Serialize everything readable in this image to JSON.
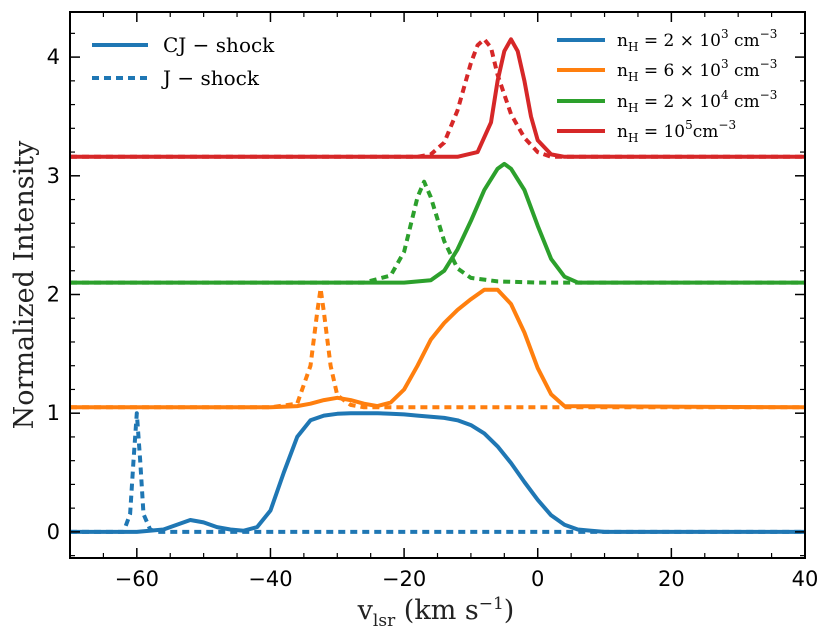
{
  "chart_data": {
    "type": "line",
    "title": "",
    "xlabel_main": "v",
    "xlabel_sub": "lsr",
    "xlabel_units": "(km s",
    "xlabel_units_sup": "−1",
    "xlabel_units_end": ")",
    "ylabel": "Normalized Intensity",
    "xlim": [
      -70,
      40
    ],
    "ylim": [
      -0.22,
      4.38
    ],
    "xticks": [
      -60,
      -40,
      -20,
      0,
      20,
      40
    ],
    "xtick_labels": [
      "−60",
      "−40",
      "−20",
      "0",
      "20",
      "40"
    ],
    "yticks": [
      0,
      1,
      2,
      3,
      4
    ],
    "ytick_labels": [
      "0",
      "1",
      "2",
      "3",
      "4"
    ],
    "style_legend": [
      {
        "label": "CJ − shock",
        "linestyle": "solid"
      },
      {
        "label": "J − shock",
        "linestyle": "dashed"
      }
    ],
    "density_legend": [
      {
        "label": "n",
        "sub": "H",
        "rest": " = 2 × 10",
        "sup": "3",
        "unit": " cm",
        "unitsup": "−3",
        "color": "#1f77b4"
      },
      {
        "label": "n",
        "sub": "H",
        "rest": " = 6 × 10",
        "sup": "3",
        "unit": " cm",
        "unitsup": "−3",
        "color": "#ff7f0e"
      },
      {
        "label": "n",
        "sub": "H",
        "rest": " = 2 × 10",
        "sup": "4",
        "unit": " cm",
        "unitsup": "−3",
        "color": "#2ca02c"
      },
      {
        "label": "n",
        "sub": "H",
        "rest": " = 10",
        "sup": "5",
        "unit": "cm",
        "unitsup": "−3",
        "color": "#d62728"
      }
    ],
    "series": [
      {
        "name": "CJ-shock nH=2e3",
        "color": "#1f77b4",
        "linestyle": "solid",
        "x": [
          -70,
          -60,
          -56,
          -54,
          -52,
          -50,
          -48,
          -46,
          -44,
          -42,
          -40,
          -38,
          -36,
          -34,
          -32,
          -30,
          -28,
          -26,
          -24,
          -22,
          -20,
          -18,
          -16,
          -14,
          -12,
          -10,
          -8,
          -6,
          -4,
          -2,
          0,
          2,
          4,
          6,
          8,
          10,
          12,
          40
        ],
        "y": [
          0,
          0,
          0.02,
          0.06,
          0.1,
          0.08,
          0.04,
          0.02,
          0.01,
          0.04,
          0.18,
          0.5,
          0.8,
          0.94,
          0.98,
          0.995,
          1.0,
          1.0,
          1.0,
          0.995,
          0.99,
          0.98,
          0.97,
          0.96,
          0.94,
          0.9,
          0.83,
          0.72,
          0.58,
          0.42,
          0.27,
          0.14,
          0.06,
          0.02,
          0.01,
          0,
          0,
          0
        ]
      },
      {
        "name": "J-shock nH=2e3",
        "color": "#1f77b4",
        "linestyle": "dashed",
        "x": [
          -70,
          -62,
          -61,
          -60.5,
          -60,
          -59.5,
          -59,
          -58,
          -57,
          -40,
          40
        ],
        "y": [
          0,
          0,
          0.15,
          0.6,
          1.0,
          0.6,
          0.15,
          0.02,
          0,
          0,
          0
        ]
      },
      {
        "name": "CJ-shock nH=6e3",
        "color": "#ff7f0e",
        "linestyle": "solid",
        "x": [
          -70,
          -40,
          -36,
          -34,
          -32,
          -30,
          -28,
          -26,
          -24,
          -22,
          -20,
          -18,
          -16,
          -14,
          -12,
          -10,
          -8,
          -6,
          -4,
          -2,
          0,
          2,
          4,
          40
        ],
        "y": [
          1.05,
          1.05,
          1.06,
          1.08,
          1.11,
          1.13,
          1.11,
          1.08,
          1.06,
          1.09,
          1.2,
          1.4,
          1.62,
          1.76,
          1.87,
          1.96,
          2.04,
          2.04,
          1.92,
          1.68,
          1.38,
          1.16,
          1.06,
          1.05
        ]
      },
      {
        "name": "J-shock nH=6e3",
        "color": "#ff7f0e",
        "linestyle": "dashed",
        "x": [
          -70,
          -40,
          -36,
          -34,
          -33,
          -32.5,
          -32,
          -31,
          -30,
          -28,
          -26,
          40
        ],
        "y": [
          1.05,
          1.05,
          1.08,
          1.4,
          1.85,
          2.05,
          1.85,
          1.4,
          1.15,
          1.07,
          1.05,
          1.05
        ]
      },
      {
        "name": "CJ-shock nH=2e4",
        "color": "#2ca02c",
        "linestyle": "solid",
        "x": [
          -70,
          -20,
          -16,
          -14,
          -12,
          -10,
          -8,
          -6,
          -5,
          -4,
          -2,
          0,
          2,
          4,
          6,
          40
        ],
        "y": [
          2.1,
          2.1,
          2.12,
          2.2,
          2.38,
          2.62,
          2.88,
          3.06,
          3.1,
          3.06,
          2.88,
          2.58,
          2.3,
          2.15,
          2.1,
          2.1
        ]
      },
      {
        "name": "J-shock nH=2e4",
        "color": "#2ca02c",
        "linestyle": "dashed",
        "x": [
          -70,
          -26,
          -22,
          -20,
          -18,
          -17,
          -16,
          -14,
          -12,
          -10,
          -6,
          0,
          40
        ],
        "y": [
          2.1,
          2.1,
          2.16,
          2.36,
          2.82,
          2.95,
          2.82,
          2.45,
          2.22,
          2.14,
          2.11,
          2.1,
          2.1
        ]
      },
      {
        "name": "CJ-shock nH=1e5",
        "color": "#d62728",
        "linestyle": "solid",
        "x": [
          -70,
          -12,
          -9,
          -7,
          -6,
          -5,
          -4,
          -3,
          -2,
          -1,
          0,
          2,
          4,
          40
        ],
        "y": [
          3.16,
          3.16,
          3.2,
          3.45,
          3.8,
          4.05,
          4.15,
          4.05,
          3.8,
          3.5,
          3.3,
          3.18,
          3.16,
          3.16
        ]
      },
      {
        "name": "J-shock nH=1e5",
        "color": "#d62728",
        "linestyle": "dashed",
        "x": [
          -70,
          -18,
          -16,
          -14,
          -12,
          -10,
          -9,
          -8,
          -7,
          -6,
          -4,
          -2,
          0,
          2,
          40
        ],
        "y": [
          3.16,
          3.16,
          3.18,
          3.28,
          3.55,
          3.95,
          4.1,
          4.15,
          4.08,
          3.85,
          3.52,
          3.32,
          3.2,
          3.16,
          3.16
        ]
      }
    ]
  }
}
